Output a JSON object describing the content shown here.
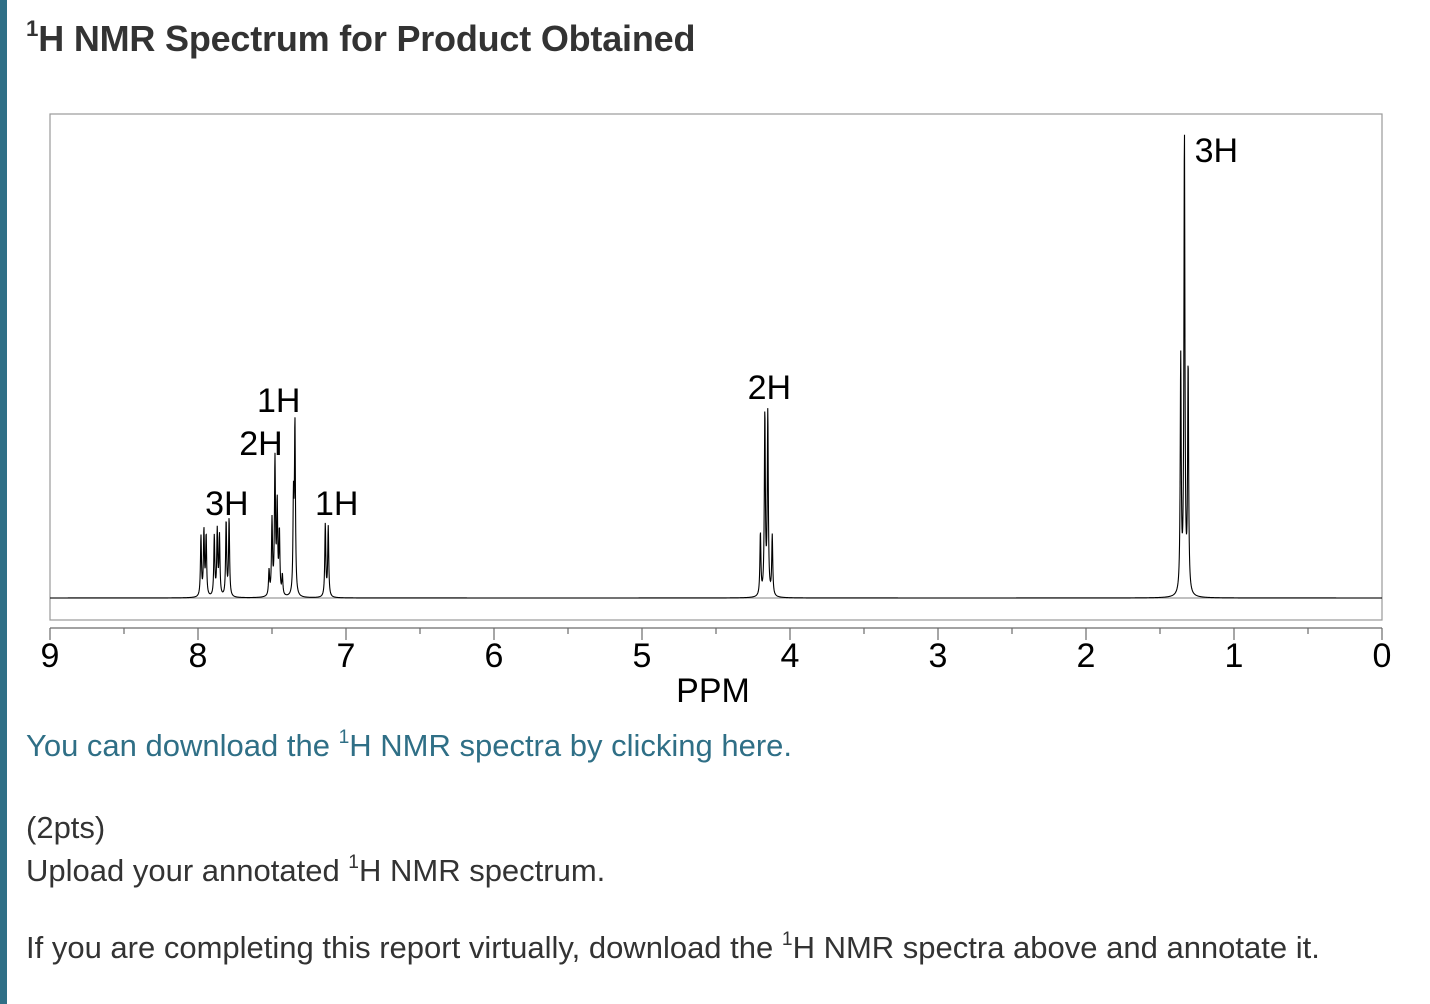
{
  "title": {
    "iso": "1",
    "text": "H NMR Spectrum for Product Obtained"
  },
  "download_link": {
    "before": "You can download the ",
    "iso": "1",
    "after": "H NMR spectra by clicking here",
    "period": "."
  },
  "points": "(2pts)",
  "upload": {
    "before": "Upload your annotated ",
    "iso": "1",
    "after": "H NMR spectrum."
  },
  "virtual": {
    "before": "If you are completing this report virtually, download the ",
    "iso": "1",
    "after": "H NMR spectra above and annotate it."
  },
  "colors": {
    "accent": "#2f6f86",
    "text": "#333333",
    "link": "#2f6f86",
    "trace": "#000000"
  },
  "chart_data": {
    "type": "line",
    "title": "",
    "xlabel": "PPM",
    "ylabel": "",
    "xlim": [
      9,
      0
    ],
    "x_ticks": [
      "9",
      "8",
      "7",
      "6",
      "5",
      "4",
      "3",
      "2",
      "1",
      "0"
    ],
    "integrations": [
      {
        "label": "3H",
        "ppm": 7.9
      },
      {
        "label": "2H",
        "ppm": 7.48
      },
      {
        "label": "1H",
        "ppm": 7.36
      },
      {
        "label": "1H",
        "ppm": 7.13
      },
      {
        "label": "2H",
        "ppm": 4.16
      },
      {
        "label": "3H",
        "ppm": 1.32
      }
    ],
    "peaks": [
      {
        "ppm": 7.98,
        "height": 0.24
      },
      {
        "ppm": 7.96,
        "height": 0.26
      },
      {
        "ppm": 7.945,
        "height": 0.24
      },
      {
        "ppm": 7.89,
        "height": 0.24
      },
      {
        "ppm": 7.87,
        "height": 0.26
      },
      {
        "ppm": 7.855,
        "height": 0.24
      },
      {
        "ppm": 7.81,
        "height": 0.3
      },
      {
        "ppm": 7.79,
        "height": 0.31
      },
      {
        "ppm": 7.52,
        "height": 0.1
      },
      {
        "ppm": 7.5,
        "height": 0.3
      },
      {
        "ppm": 7.48,
        "height": 0.54
      },
      {
        "ppm": 7.465,
        "height": 0.36
      },
      {
        "ppm": 7.45,
        "height": 0.25
      },
      {
        "ppm": 7.43,
        "height": 0.08
      },
      {
        "ppm": 7.355,
        "height": 0.37
      },
      {
        "ppm": 7.345,
        "height": 0.68
      },
      {
        "ppm": 7.14,
        "height": 0.29
      },
      {
        "ppm": 7.12,
        "height": 0.28
      },
      {
        "ppm": 4.2,
        "height": 0.25
      },
      {
        "ppm": 4.17,
        "height": 0.73
      },
      {
        "ppm": 4.15,
        "height": 0.73
      },
      {
        "ppm": 4.12,
        "height": 0.24
      },
      {
        "ppm": 1.36,
        "height": 0.94
      },
      {
        "ppm": 1.335,
        "height": 1.84
      },
      {
        "ppm": 1.31,
        "height": 0.91
      }
    ]
  }
}
